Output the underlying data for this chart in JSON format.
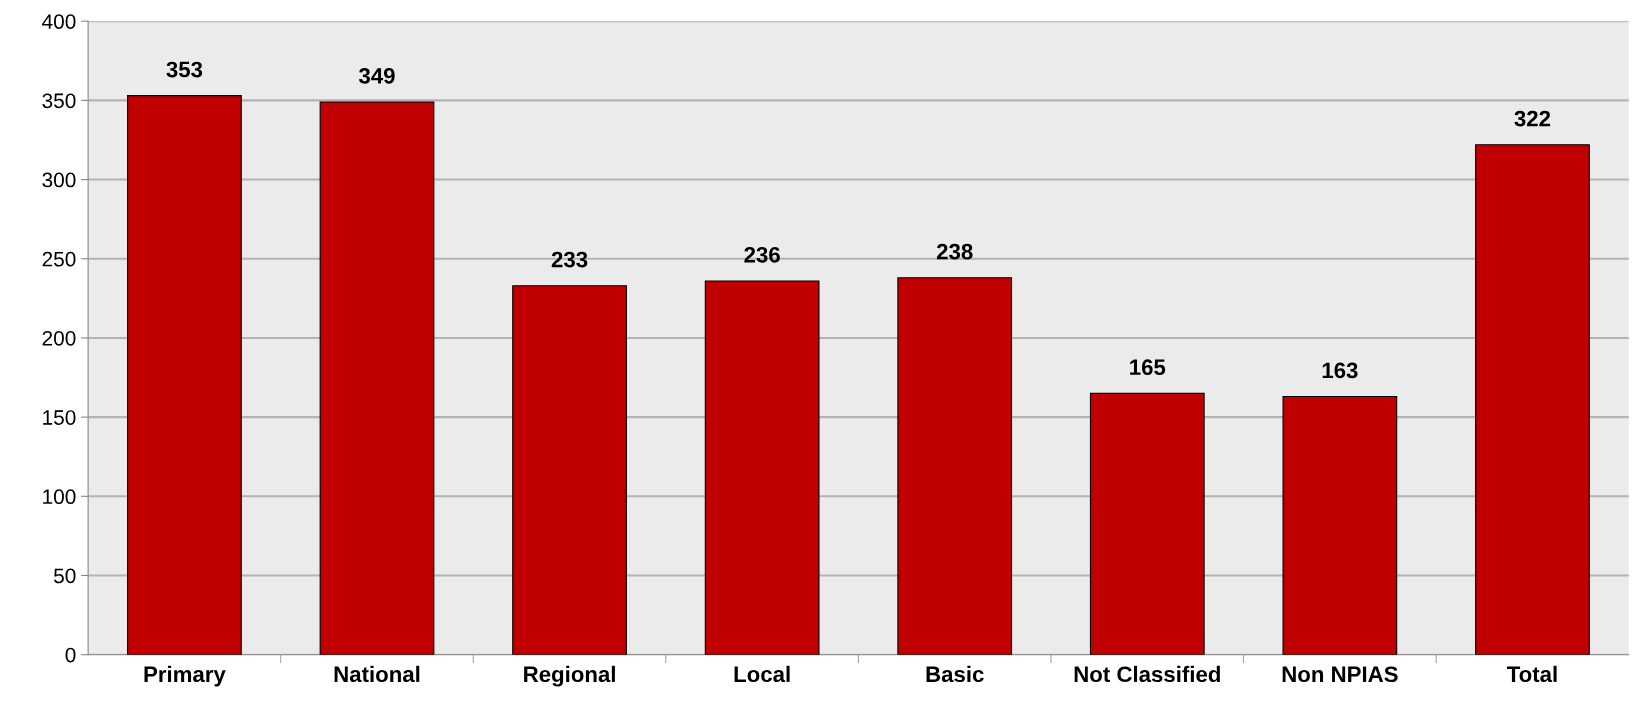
{
  "chart_data": {
    "type": "bar",
    "categories": [
      "Primary",
      "National",
      "Regional",
      "Local",
      "Basic",
      "Not Classified",
      "Non NPIAS",
      "Total"
    ],
    "values": [
      353,
      349,
      233,
      236,
      238,
      165,
      163,
      322
    ],
    "color": "#c00000",
    "ylim": [
      0,
      400
    ],
    "yticks": [
      0,
      50,
      100,
      150,
      200,
      250,
      300,
      350,
      400
    ],
    "grid": "y",
    "data_labels": true
  }
}
